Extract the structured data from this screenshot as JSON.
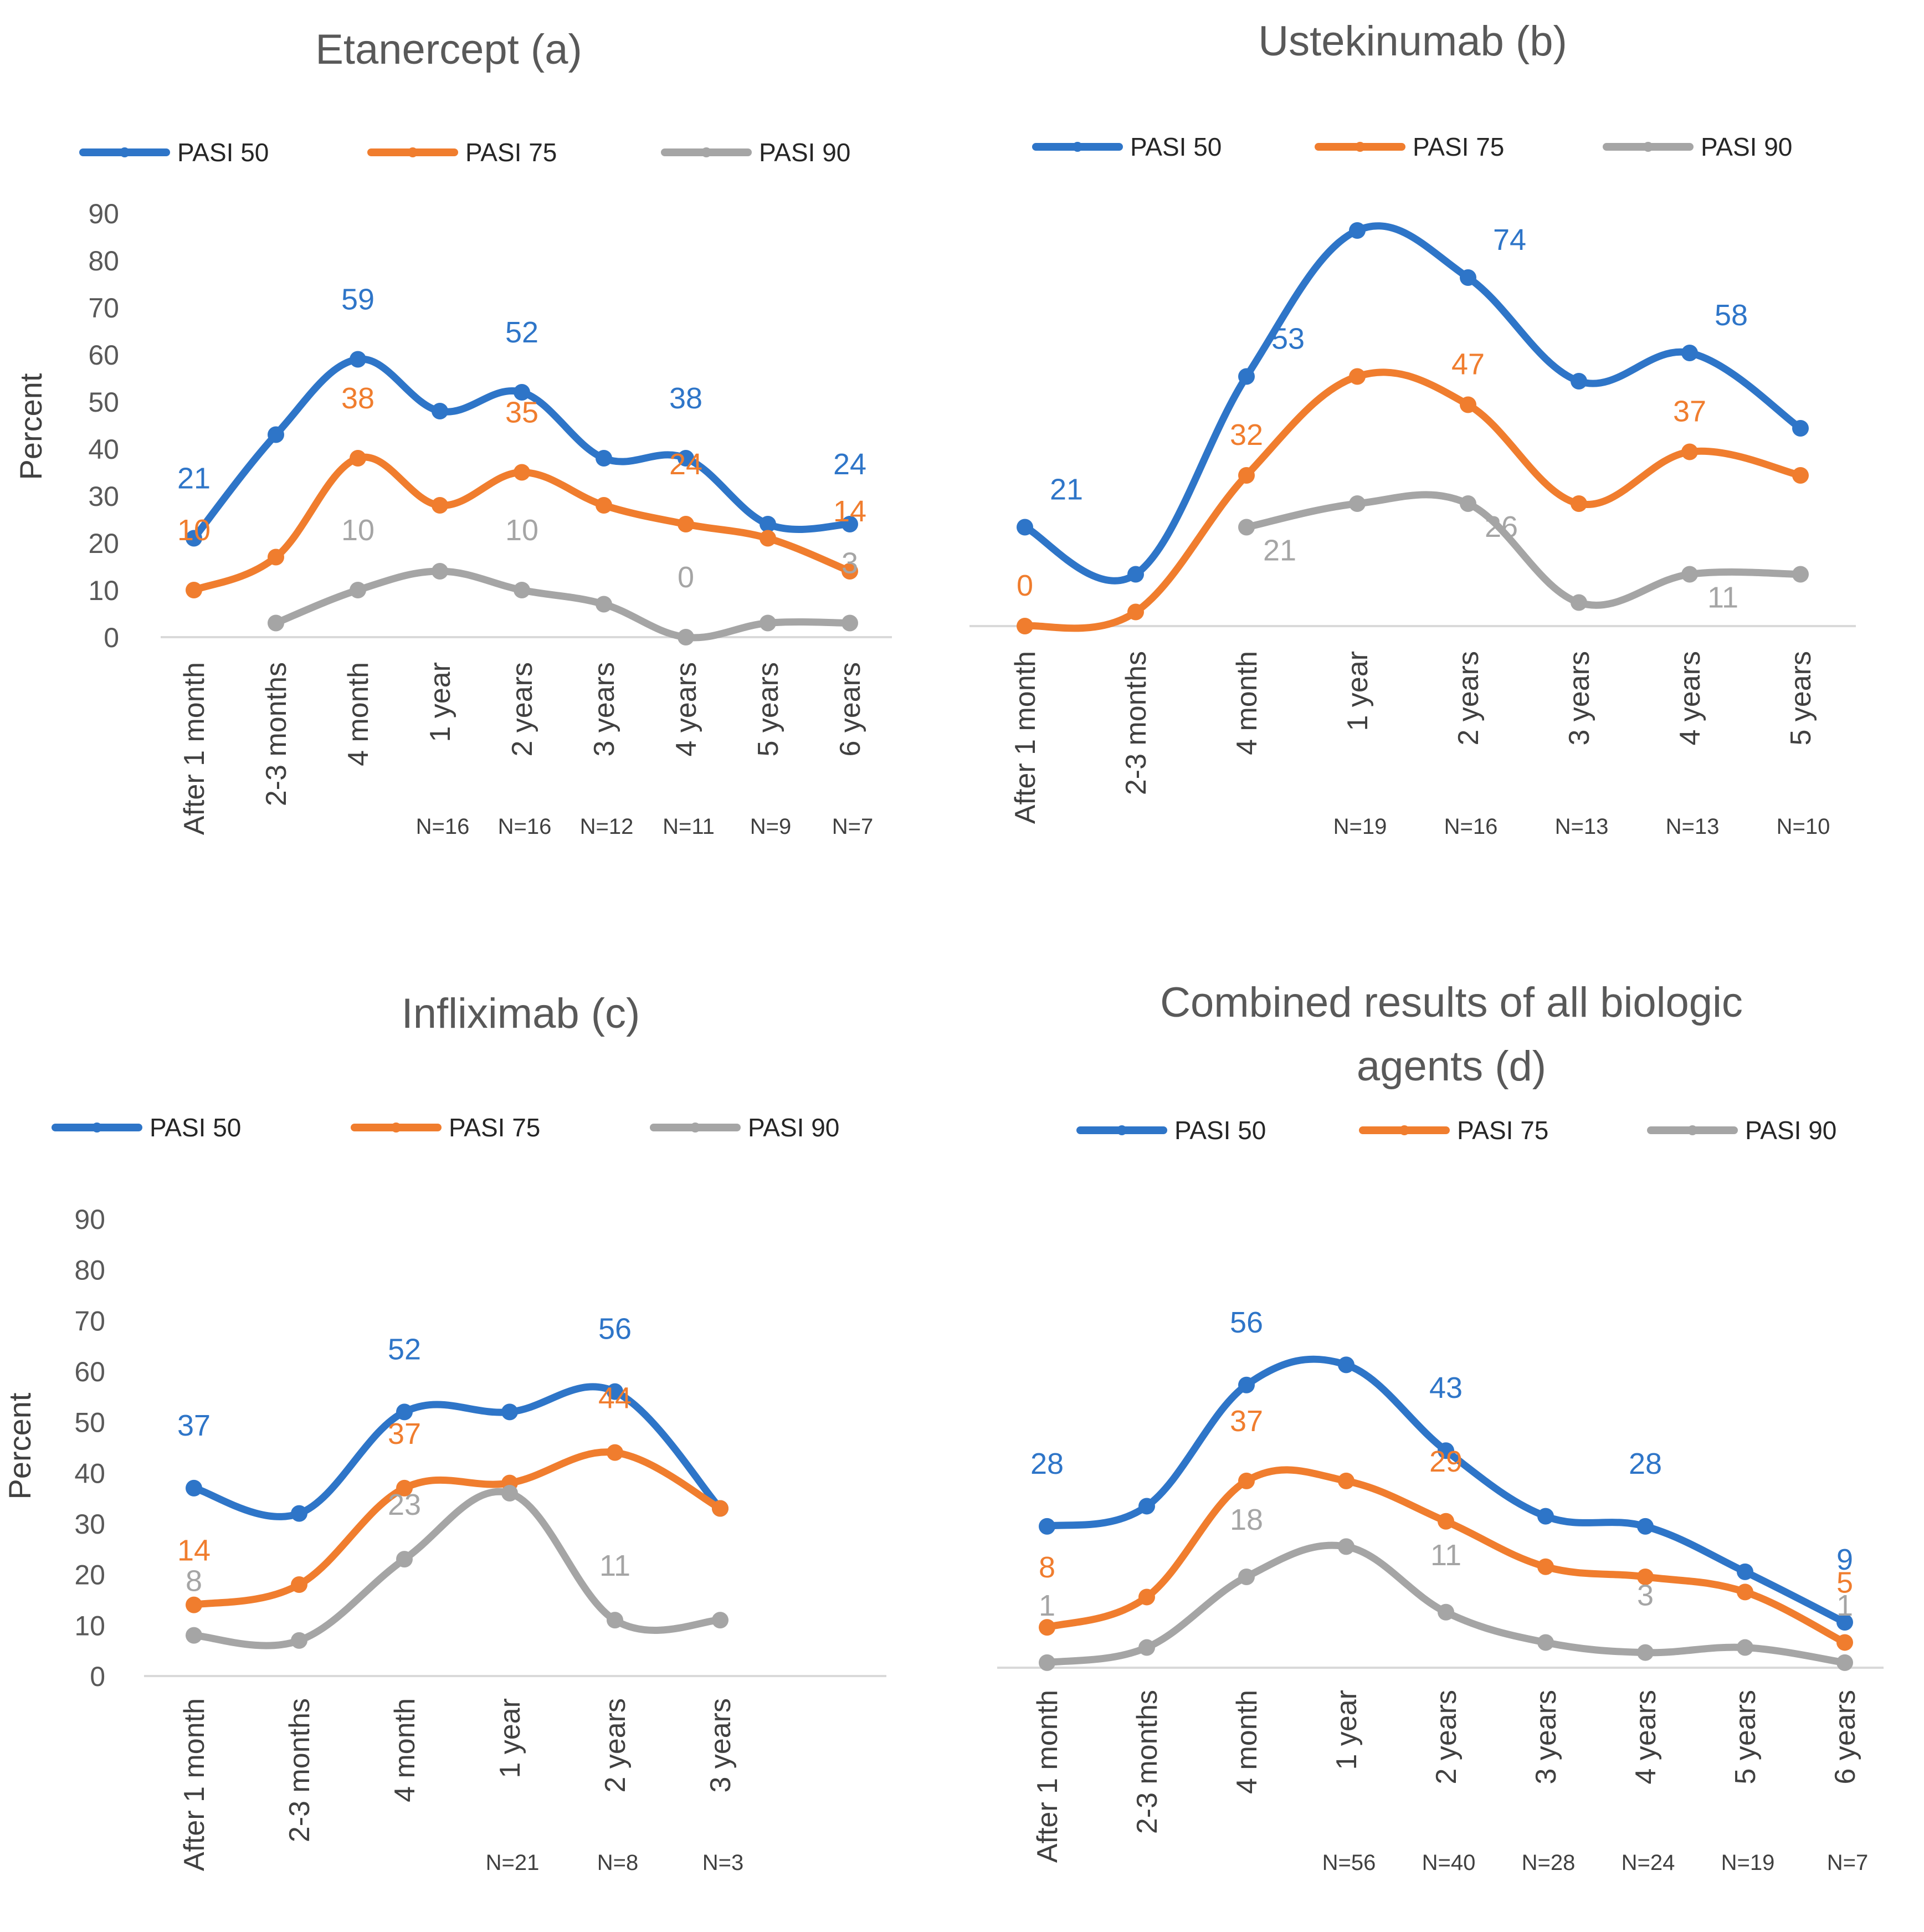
{
  "colors": {
    "pasi50": "#2E75C8",
    "pasi75": "#F07D2E",
    "pasi90": "#A5A5A5",
    "axis": "#D9D9D9"
  },
  "legend": [
    "PASI 50",
    "PASI 75",
    "PASI 90"
  ],
  "chart_data": [
    {
      "id": "a",
      "type": "line",
      "title": "Etanercept (a)",
      "ylabel": "Percent",
      "ylim": [
        0,
        90
      ],
      "yticks": [
        0,
        10,
        20,
        30,
        40,
        50,
        60,
        70,
        80,
        90
      ],
      "categories": [
        "After 1 month",
        "2-3 months",
        "4 month",
        "1 year",
        "2 years",
        "3 years",
        "4 years",
        "5 years",
        "6 years"
      ],
      "n_labels": [
        "",
        "",
        "",
        "N=16",
        "N=16",
        "N=12",
        "N=11",
        "N=9",
        "N=7"
      ],
      "series": [
        {
          "name": "PASI 50",
          "values": [
            21,
            43,
            59,
            48,
            52,
            38,
            38,
            24,
            24
          ],
          "labels": [
            "21",
            "",
            "59",
            "",
            "52",
            "",
            "38",
            "",
            "24"
          ]
        },
        {
          "name": "PASI 75",
          "values": [
            10,
            17,
            38,
            28,
            35,
            28,
            24,
            21,
            14
          ],
          "labels": [
            "10",
            "",
            "38",
            "",
            "35",
            "",
            "24",
            "",
            "14"
          ]
        },
        {
          "name": "PASI 90",
          "values": [
            null,
            3,
            10,
            14,
            10,
            7,
            0,
            3,
            3
          ],
          "labels": [
            "",
            "",
            "10",
            "",
            "10",
            "",
            "0",
            "",
            "3"
          ]
        }
      ]
    },
    {
      "id": "b",
      "type": "line",
      "title": "Ustekinumab (b)",
      "ylabel": "",
      "ylim": [
        0,
        90
      ],
      "yticks": [],
      "categories": [
        "After 1 month",
        "2-3 months",
        "4 month",
        "1 year",
        "2 years",
        "3 years",
        "4 years",
        "5 years"
      ],
      "n_labels": [
        "",
        "",
        "",
        "N=19",
        "N=16",
        "N=13",
        "N=13",
        "N=10"
      ],
      "series": [
        {
          "name": "PASI 50",
          "values": [
            21,
            11,
            53,
            84,
            74,
            52,
            58,
            42
          ],
          "labels": [
            "21",
            "",
            "53",
            "",
            "74",
            "",
            "58",
            ""
          ]
        },
        {
          "name": "PASI 75",
          "values": [
            0,
            3,
            32,
            53,
            47,
            26,
            37,
            32
          ],
          "labels": [
            "0",
            "",
            "32",
            "",
            "47",
            "",
            "37",
            ""
          ]
        },
        {
          "name": "PASI 90",
          "values": [
            null,
            null,
            21,
            26,
            26,
            5,
            11,
            11
          ],
          "labels": [
            "",
            "",
            "21",
            "",
            "26",
            "",
            "11",
            ""
          ]
        }
      ]
    },
    {
      "id": "c",
      "type": "line",
      "title": "Infliximab (c)",
      "ylabel": "Percent",
      "ylim": [
        0,
        90
      ],
      "yticks": [
        0,
        10,
        20,
        30,
        40,
        50,
        60,
        70,
        80,
        90
      ],
      "categories": [
        "After 1 month",
        "2-3 months",
        "4 month",
        "1 year",
        "2 years",
        "3 years"
      ],
      "n_labels": [
        "",
        "",
        "",
        "N=21",
        "N=8",
        "N=3"
      ],
      "series": [
        {
          "name": "PASI 50",
          "values": [
            37,
            32,
            52,
            52,
            56,
            33
          ],
          "labels": [
            "37",
            "",
            "52",
            "",
            "56",
            ""
          ]
        },
        {
          "name": "PASI 75",
          "values": [
            14,
            18,
            37,
            38,
            44,
            33
          ],
          "labels": [
            "14",
            "",
            "37",
            "",
            "44",
            ""
          ]
        },
        {
          "name": "PASI 90",
          "values": [
            8,
            7,
            23,
            36,
            11,
            11
          ],
          "labels": [
            "8",
            "",
            "23",
            "",
            "11",
            ""
          ]
        }
      ]
    },
    {
      "id": "d",
      "type": "line",
      "title": "Combined results of all biologic agents (d)",
      "title_lines": [
        "Combined results of all biologic",
        "agents (d)"
      ],
      "ylabel": "",
      "ylim": [
        0,
        90
      ],
      "yticks": [],
      "categories": [
        "After 1 month",
        "2-3 months",
        "4 month",
        "1 year",
        "2 years",
        "3 years",
        "4 years",
        "5 years",
        "6 years"
      ],
      "n_labels": [
        "",
        "",
        "",
        "N=56",
        "N=40",
        "N=28",
        "N=24",
        "N=19",
        "N=7"
      ],
      "series": [
        {
          "name": "PASI 50",
          "values": [
            28,
            32,
            56,
            60,
            43,
            30,
            28,
            19,
            9
          ],
          "labels": [
            "28",
            "",
            "56",
            "",
            "43",
            "",
            "28",
            "",
            "9"
          ]
        },
        {
          "name": "PASI 75",
          "values": [
            8,
            14,
            37,
            37,
            29,
            20,
            18,
            15,
            5
          ],
          "labels": [
            "8",
            "",
            "37",
            "",
            "29",
            "",
            "",
            "",
            "5"
          ]
        },
        {
          "name": "PASI 90",
          "values": [
            1,
            4,
            18,
            24,
            11,
            5,
            3,
            4,
            1
          ],
          "labels": [
            "1",
            "",
            "18",
            "",
            "11",
            "",
            "3",
            "",
            "1"
          ]
        }
      ]
    }
  ]
}
